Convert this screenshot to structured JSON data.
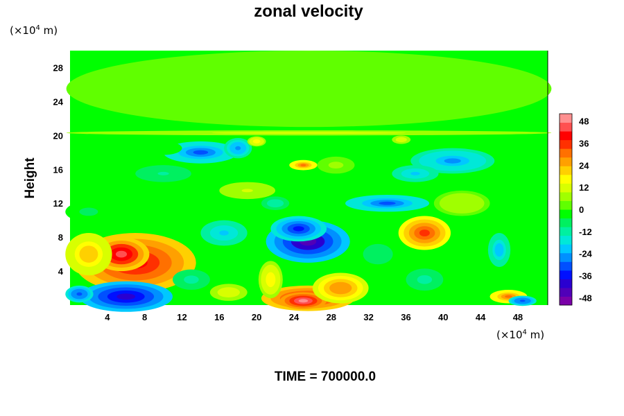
{
  "chart_data": {
    "type": "heatmap",
    "title": "zonal velocity",
    "ylabel": "Height",
    "y_unit_prefix": "(×10",
    "y_unit_exp": "4",
    "y_unit_suffix": " m)",
    "x_unit_prefix": "(×10",
    "x_unit_exp": "4",
    "x_unit_suffix": " m)",
    "xlim": [
      0,
      51.2
    ],
    "ylim": [
      0,
      30
    ],
    "x_ticks": [
      4,
      8,
      12,
      16,
      20,
      24,
      28,
      32,
      36,
      40,
      44,
      48
    ],
    "y_ticks": [
      4,
      8,
      12,
      16,
      20,
      24,
      28
    ],
    "colorbar": {
      "range": [
        -52,
        52
      ],
      "ticks": [
        48,
        36,
        24,
        12,
        0,
        -12,
        -24,
        -36,
        -48
      ],
      "colors": [
        "#7a00a8",
        "#5000b8",
        "#2a00d0",
        "#0010ff",
        "#0050ff",
        "#0090ff",
        "#00c8ff",
        "#00e8d8",
        "#00f0a0",
        "#00f060",
        "#00ff00",
        "#60ff00",
        "#a0ff00",
        "#d8ff00",
        "#ffff00",
        "#ffd000",
        "#ffa000",
        "#ff7000",
        "#ff3000",
        "#ff0000",
        "#ff5050",
        "#ff9090"
      ]
    },
    "features": [
      {
        "x": 25.6,
        "y": 25.5,
        "rx": 26,
        "ry": 4.5,
        "value": 2
      },
      {
        "x": 25.6,
        "y": 20.3,
        "rx": 26,
        "ry": 0.3,
        "value": 12
      },
      {
        "x": 7,
        "y": 5,
        "rx": 6.5,
        "ry": 3.5,
        "value": 40
      },
      {
        "x": 5.5,
        "y": 6,
        "rx": 3,
        "ry": 2,
        "value": 46
      },
      {
        "x": 2,
        "y": 6,
        "rx": 2.5,
        "ry": 2.5,
        "value": 22
      },
      {
        "x": 6,
        "y": 1,
        "rx": 5,
        "ry": 1.8,
        "value": -42
      },
      {
        "x": 1,
        "y": 1.3,
        "rx": 1.5,
        "ry": 1,
        "value": -32
      },
      {
        "x": 25.5,
        "y": 0.8,
        "rx": 5,
        "ry": 1.5,
        "value": 44
      },
      {
        "x": 25,
        "y": 0.5,
        "rx": 2.5,
        "ry": 1,
        "value": 50
      },
      {
        "x": 29,
        "y": 2,
        "rx": 3,
        "ry": 1.8,
        "value": 28
      },
      {
        "x": 25.5,
        "y": 7.5,
        "rx": 4.5,
        "ry": 2.5,
        "value": -44
      },
      {
        "x": 24.5,
        "y": 9,
        "rx": 3,
        "ry": 1.5,
        "value": -36
      },
      {
        "x": 38,
        "y": 8.5,
        "rx": 2.8,
        "ry": 2,
        "value": 36
      },
      {
        "x": 47,
        "y": 1,
        "rx": 2,
        "ry": 0.8,
        "value": 30
      },
      {
        "x": 48.5,
        "y": 0.5,
        "rx": 1.5,
        "ry": 0.6,
        "value": -32
      },
      {
        "x": 46,
        "y": 6.5,
        "rx": 1.2,
        "ry": 2,
        "value": -22
      },
      {
        "x": 14,
        "y": 18,
        "rx": 4,
        "ry": 1.3,
        "value": -30
      },
      {
        "x": 18,
        "y": 18.5,
        "rx": 1.5,
        "ry": 1.2,
        "value": -26
      },
      {
        "x": 41,
        "y": 17,
        "rx": 4.5,
        "ry": 1.5,
        "value": -24
      },
      {
        "x": 37,
        "y": 15.5,
        "rx": 2.5,
        "ry": 1,
        "value": -20
      },
      {
        "x": 34,
        "y": 12,
        "rx": 4.5,
        "ry": 1,
        "value": -30
      },
      {
        "x": 25,
        "y": 16.5,
        "rx": 1.5,
        "ry": 0.6,
        "value": 30
      },
      {
        "x": 20,
        "y": 19.3,
        "rx": 1,
        "ry": 0.6,
        "value": 18
      },
      {
        "x": 35.5,
        "y": 19.5,
        "rx": 1,
        "ry": 0.5,
        "value": 14
      },
      {
        "x": 16.5,
        "y": 8.5,
        "rx": 2.5,
        "ry": 1.5,
        "value": -20
      },
      {
        "x": 21.5,
        "y": 3,
        "rx": 1.3,
        "ry": 2.2,
        "value": 18
      },
      {
        "x": 17,
        "y": 1.5,
        "rx": 2,
        "ry": 1,
        "value": 14
      },
      {
        "x": 13,
        "y": 3,
        "rx": 2,
        "ry": 1.2,
        "value": -12
      },
      {
        "x": 38,
        "y": 3,
        "rx": 2,
        "ry": 1.3,
        "value": -12
      },
      {
        "x": 10,
        "y": 15.5,
        "rx": 3,
        "ry": 1,
        "value": -10
      },
      {
        "x": 19,
        "y": 13.5,
        "rx": 3,
        "ry": 1,
        "value": 10
      },
      {
        "x": 42,
        "y": 12,
        "rx": 3,
        "ry": 1.5,
        "value": 8
      },
      {
        "x": 33,
        "y": 6,
        "rx": 2,
        "ry": 1.5,
        "value": -8
      },
      {
        "x": 2,
        "y": 11,
        "rx": 2.5,
        "ry": 1.2,
        "value": -6
      },
      {
        "x": 28.5,
        "y": 16.5,
        "rx": 2,
        "ry": 1,
        "value": 6
      },
      {
        "x": 22,
        "y": 12,
        "rx": 1.5,
        "ry": 0.8,
        "value": -14
      },
      {
        "x": 10,
        "y": 18.5,
        "rx": 2,
        "ry": 0.8,
        "value": -4
      }
    ],
    "time_label": "TIME = 700000.0"
  }
}
